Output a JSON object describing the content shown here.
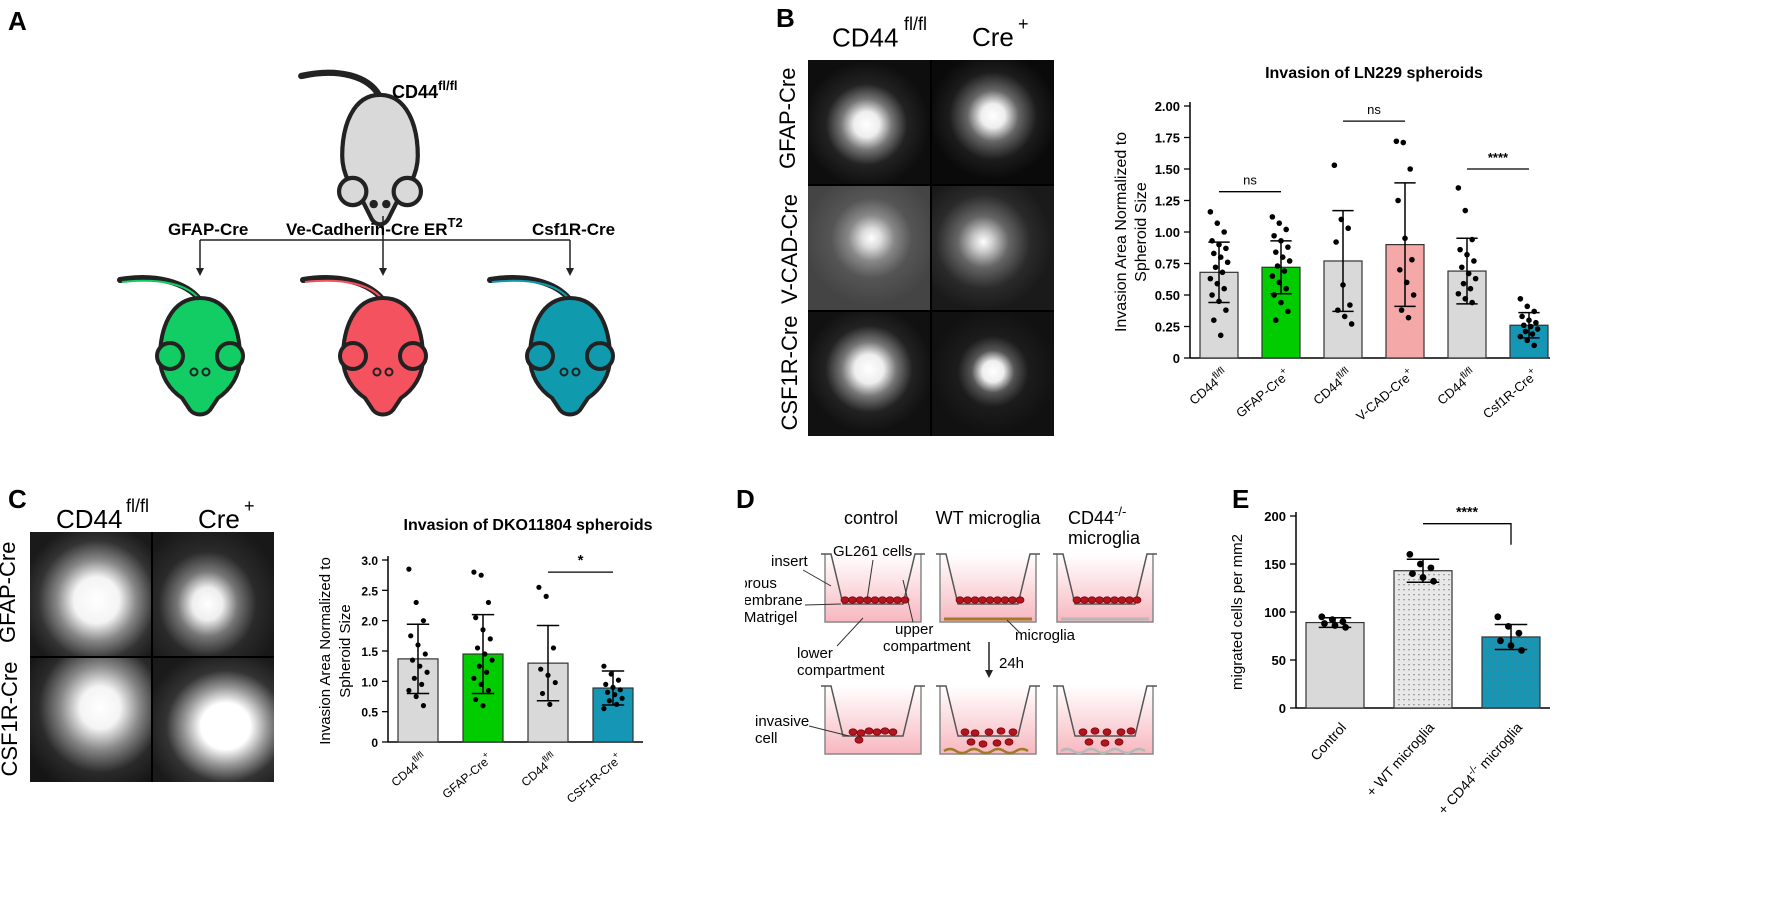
{
  "panels": {
    "a": "A",
    "b": "B",
    "c": "C",
    "d": "D",
    "e": "E"
  },
  "panel_a": {
    "parent_label": "CD44",
    "parent_sup": "fl/fl",
    "gfap": "GFAP-Cre",
    "vecad": "Ve-Cadherin-Cre ER",
    "vecad_sup": "T2",
    "csf1r": "Csf1R-Cre",
    "colors": {
      "grey": "#d9d9d9",
      "green": "#12cc64",
      "red": "#f5525f",
      "teal": "#0f9aae"
    }
  },
  "panel_b": {
    "col1": "CD44",
    "col1_sup": "fl/fl",
    "col2": "Cre",
    "col2_sup": "+",
    "rows": [
      "GFAP-Cre",
      "V-CAD-Cre",
      "CSF1R-Cre"
    ]
  },
  "panel_c": {
    "col1": "CD44",
    "col1_sup": "fl/fl",
    "col2": "Cre",
    "col2_sup": "+",
    "rows": [
      "GFAP-Cre",
      "CSF1R-Cre"
    ]
  },
  "panel_d": {
    "col_control": "control",
    "col_wt": "WT microglia",
    "col_ko": "CD44",
    "col_ko_sup": "-/-",
    "col_ko2": "microglia",
    "insert": "insert",
    "gl261": "GL261 cells",
    "porous1": "porous",
    "porous2": "membrane",
    "porous3": "+ Matrigel",
    "upper1": "upper",
    "upper2": "compartment",
    "microglia": "microglia",
    "lower1": "lower",
    "lower2": "compartment",
    "time": "24h",
    "invasive1": "invasive",
    "invasive2": "cell"
  },
  "chart_data": [
    {
      "id": "B",
      "type": "bar",
      "title": "Invasion of LN229 spheroids",
      "ylabel": "Invasion Area Normalized to Spheroid Size",
      "ylabel_lines": [
        "Invasion Area Normalized to",
        "Spheroid Size"
      ],
      "ylim": [
        0,
        2.0
      ],
      "yticks": [
        "0",
        "0.25",
        "0.50",
        "0.75",
        "1.00",
        "1.25",
        "1.50",
        "1.75",
        "2.00"
      ],
      "ytick_values": [
        0,
        0.25,
        0.5,
        0.75,
        1.0,
        1.25,
        1.5,
        1.75,
        2.0
      ],
      "categories": [
        {
          "main": "CD44",
          "sup": "fl/fl"
        },
        {
          "main": "GFAP-Cre",
          "sup": "+"
        },
        {
          "main": "CD44",
          "sup": "fl/fl"
        },
        {
          "main": "V-CAD-Cre",
          "sup": "+"
        },
        {
          "main": "CD44",
          "sup": "fl/fl"
        },
        {
          "main": "Csf1R-Cre",
          "sup": "+"
        }
      ],
      "values": [
        0.68,
        0.72,
        0.77,
        0.9,
        0.69,
        0.26
      ],
      "errors": [
        0.24,
        0.21,
        0.4,
        0.49,
        0.26,
        0.1
      ],
      "colors": [
        "#d9d9d9",
        "#00cc00",
        "#d9d9d9",
        "#f4a8a8",
        "#d9d9d9",
        "#1496b4"
      ],
      "points": [
        [
          1.16,
          1.07,
          1.0,
          0.93,
          0.9,
          0.87,
          0.83,
          0.8,
          0.76,
          0.72,
          0.68,
          0.63,
          0.59,
          0.55,
          0.5,
          0.45,
          0.38,
          0.3,
          0.18
        ],
        [
          1.12,
          1.07,
          1.02,
          0.97,
          0.93,
          0.88,
          0.84,
          0.8,
          0.77,
          0.73,
          0.69,
          0.65,
          0.6,
          0.55,
          0.5,
          0.44,
          0.37,
          0.3
        ],
        [
          1.53,
          1.1,
          1.03,
          0.92,
          0.58,
          0.42,
          0.38,
          0.33,
          0.27
        ],
        [
          1.72,
          1.71,
          1.5,
          1.25,
          0.95,
          0.78,
          0.7,
          0.6,
          0.5,
          0.38,
          0.32
        ],
        [
          1.35,
          1.17,
          0.94,
          0.86,
          0.82,
          0.77,
          0.72,
          0.67,
          0.63,
          0.59,
          0.55,
          0.51,
          0.47,
          0.44
        ],
        [
          0.47,
          0.41,
          0.37,
          0.33,
          0.3,
          0.28,
          0.26,
          0.25,
          0.23,
          0.21,
          0.19,
          0.17,
          0.14,
          0.1
        ]
      ],
      "comparisons": [
        {
          "from": 0,
          "to": 1,
          "label": "ns",
          "level": 1.32
        },
        {
          "from": 2,
          "to": 3,
          "label": "ns",
          "level": 1.88
        },
        {
          "from": 4,
          "to": 5,
          "label": "****",
          "level": 1.5
        }
      ]
    },
    {
      "id": "C",
      "type": "bar",
      "title": "Invasion of DKO11804 spheroids",
      "ylabel": "Invasion Area Normalized to Spheroid Size",
      "ylabel_lines": [
        "Invasion Area Normalized to",
        "Spheroid Size"
      ],
      "ylim": [
        0,
        3.0
      ],
      "yticks": [
        "0",
        "0.5",
        "1.0",
        "1.5",
        "2.0",
        "2.5",
        "3.0"
      ],
      "ytick_values": [
        0,
        0.5,
        1.0,
        1.5,
        2.0,
        2.5,
        3.0
      ],
      "categories": [
        {
          "main": "CD44",
          "sup": "fl/fl"
        },
        {
          "main": "GFAP-Cre",
          "sup": "+"
        },
        {
          "main": "CD44",
          "sup": "fl/fl"
        },
        {
          "main": "CSF1R-Cre",
          "sup": "+"
        }
      ],
      "values": [
        1.37,
        1.45,
        1.3,
        0.89
      ],
      "errors": [
        0.57,
        0.65,
        0.62,
        0.28
      ],
      "colors": [
        "#d9d9d9",
        "#00cc00",
        "#d9d9d9",
        "#1496b4"
      ],
      "points": [
        [
          2.85,
          2.3,
          2.0,
          1.75,
          1.6,
          1.45,
          1.35,
          1.25,
          1.15,
          1.05,
          0.95,
          0.85,
          0.75,
          0.6
        ],
        [
          2.8,
          2.75,
          2.3,
          2.05,
          1.85,
          1.7,
          1.55,
          1.45,
          1.35,
          1.25,
          1.15,
          1.05,
          0.95,
          0.85,
          0.7,
          0.6
        ],
        [
          2.55,
          2.4,
          1.55,
          1.2,
          1.1,
          0.98,
          0.8,
          0.62
        ],
        [
          1.25,
          1.12,
          1.02,
          0.95,
          0.9,
          0.86,
          0.82,
          0.78,
          0.72,
          0.68,
          0.62,
          0.55
        ]
      ],
      "comparisons": [
        {
          "from": 2,
          "to": 3,
          "label": "*",
          "level": 2.8
        }
      ]
    },
    {
      "id": "E",
      "type": "bar",
      "title": "",
      "ylabel": "migrated cells per mm2",
      "ylim": [
        0,
        200
      ],
      "yticks": [
        "0",
        "50",
        "100",
        "150",
        "200"
      ],
      "ytick_values": [
        0,
        50,
        100,
        150,
        200
      ],
      "categories": [
        {
          "main": "Control",
          "sup": ""
        },
        {
          "main": "+ WT microglia",
          "sup": ""
        },
        {
          "main": "+ CD44",
          "sup": "-/-",
          "tail": " microglia"
        }
      ],
      "values": [
        89,
        143,
        74
      ],
      "errors": [
        5,
        12,
        13
      ],
      "colors": [
        "#d9d9d9",
        "#e8e8e8",
        "#1496b4"
      ],
      "points": [
        [
          95,
          92,
          90,
          88,
          86,
          84
        ],
        [
          160,
          150,
          146,
          140,
          136,
          132
        ],
        [
          95,
          85,
          78,
          70,
          65,
          60
        ]
      ],
      "comparisons": [
        {
          "from": 1,
          "to": 2,
          "label": "****",
          "level": 192
        }
      ]
    }
  ]
}
